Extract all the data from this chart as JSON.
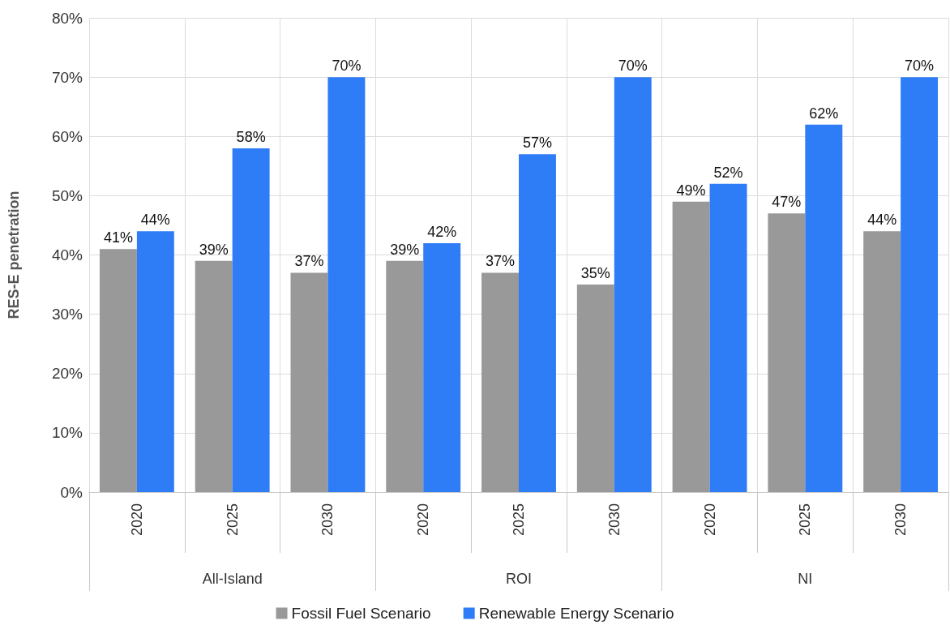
{
  "chart_data": {
    "type": "bar",
    "ylabel": "RES-E penetration",
    "categories": [
      "2020",
      "2025",
      "2030",
      "2020",
      "2025",
      "2030",
      "2020",
      "2025",
      "2030"
    ],
    "annotations": [
      "All-Island",
      "ROI",
      "NI"
    ],
    "series": [
      {
        "name": "Fossil Fuel Scenario",
        "color": "#999999",
        "values": [
          41,
          39,
          37,
          39,
          37,
          35,
          49,
          47,
          44
        ],
        "value_labels": [
          "41%",
          "39%",
          "37%",
          "39%",
          "37%",
          "35%",
          "49%",
          "47%",
          "44%"
        ]
      },
      {
        "name": "Renewable Energy Scenario",
        "color": "#2e7cf6",
        "values": [
          44,
          58,
          70,
          42,
          57,
          70,
          52,
          62,
          70
        ],
        "value_labels": [
          "44%",
          "58%",
          "70%",
          "42%",
          "57%",
          "70%",
          "52%",
          "62%",
          "70%"
        ]
      }
    ],
    "ylim": [
      0,
      80
    ],
    "yticks": [
      {
        "value": 0,
        "label": "0%"
      },
      {
        "value": 10,
        "label": "10%"
      },
      {
        "value": 20,
        "label": "20%"
      },
      {
        "value": 30,
        "label": "30%"
      },
      {
        "value": 40,
        "label": "40%"
      },
      {
        "value": 50,
        "label": "50%"
      },
      {
        "value": 60,
        "label": "60%"
      },
      {
        "value": 70,
        "label": "70%"
      },
      {
        "value": 80,
        "label": "80%"
      }
    ],
    "grid": true,
    "legend": "bottom"
  }
}
